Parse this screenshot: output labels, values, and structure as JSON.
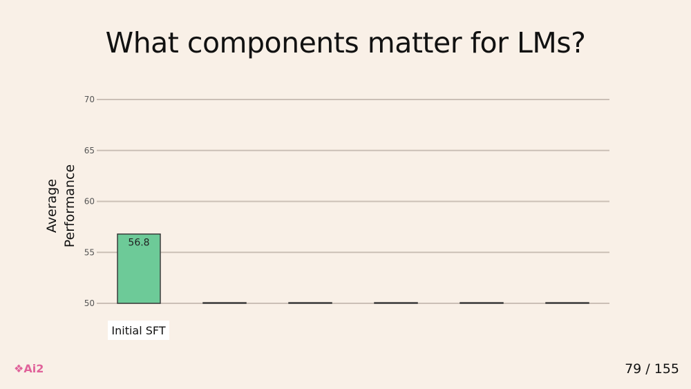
{
  "slide": {
    "title": "What components matter for LMs?",
    "logo_text": "Ai2",
    "page_number": "79 / 155"
  },
  "chart_data": {
    "type": "bar",
    "ylabel_lines": [
      "Average",
      "Performance"
    ],
    "ylim": [
      50,
      70
    ],
    "yticks": [
      50,
      55,
      60,
      65,
      70
    ],
    "grid": true,
    "categories": [
      "Initial SFT",
      "",
      "",
      "",
      "",
      ""
    ],
    "values": [
      56.8,
      50,
      50,
      50,
      50,
      50
    ],
    "data_labels": [
      "56.8",
      "",
      "",
      "",
      "",
      ""
    ],
    "bar_color": "#6dca98",
    "bar_edge": "#3a3a3a",
    "grid_color": "#cbbfb6"
  },
  "colors": {
    "background": "#f9f0e7",
    "logo": "#e0629a"
  }
}
